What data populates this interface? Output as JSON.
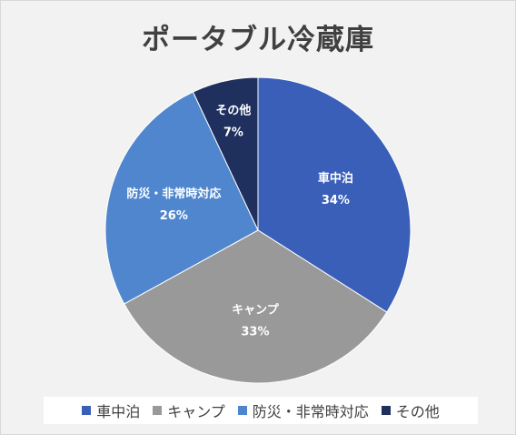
{
  "chart_data": {
    "type": "pie",
    "title": "ポータブル冷蔵庫",
    "slices": [
      {
        "label": "車中泊",
        "value": 34,
        "value_label": "34%",
        "color": "#3a5fb9"
      },
      {
        "label": "キャンプ",
        "value": 33,
        "value_label": "33%",
        "color": "#999999"
      },
      {
        "label": "防災・非常時対応",
        "value": 26,
        "value_label": "26%",
        "color": "#4f86cd"
      },
      {
        "label": "その他",
        "value": 7,
        "value_label": "7%",
        "color": "#1f2f5e"
      }
    ],
    "legend_position": "bottom"
  }
}
